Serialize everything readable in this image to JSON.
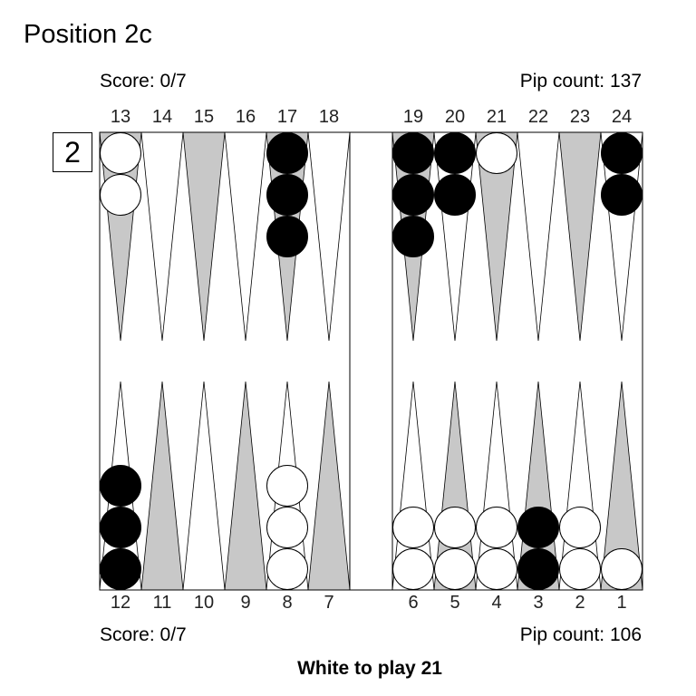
{
  "title": "Position 2c",
  "top": {
    "score": "Score: 0/7",
    "pip_count": "Pip count: 137"
  },
  "bottom": {
    "score": "Score: 0/7",
    "pip_count": "Pip count: 106"
  },
  "cube_value": "2",
  "caption": "White to play 21",
  "top_point_numbers": [
    "13",
    "14",
    "15",
    "16",
    "17",
    "18",
    "19",
    "20",
    "21",
    "22",
    "23",
    "24"
  ],
  "bottom_point_numbers": [
    "12",
    "11",
    "10",
    "9",
    "8",
    "7",
    "6",
    "5",
    "4",
    "3",
    "2",
    "1"
  ],
  "colors": {
    "dark_point": "#c8c8c8",
    "light_point": "#ffffff",
    "white_checker": "#ffffff",
    "black_checker": "#000000"
  },
  "checkers": [
    {
      "point": 13,
      "color": "white",
      "count": 2
    },
    {
      "point": 17,
      "color": "black",
      "count": 3
    },
    {
      "point": 19,
      "color": "black",
      "count": 3
    },
    {
      "point": 20,
      "color": "black",
      "count": 2
    },
    {
      "point": 21,
      "color": "white",
      "count": 1
    },
    {
      "point": 24,
      "color": "black",
      "count": 2
    },
    {
      "point": 12,
      "color": "black",
      "count": 3
    },
    {
      "point": 8,
      "color": "white",
      "count": 3
    },
    {
      "point": 6,
      "color": "white",
      "count": 2
    },
    {
      "point": 5,
      "color": "white",
      "count": 2
    },
    {
      "point": 4,
      "color": "white",
      "count": 2
    },
    {
      "point": 3,
      "color": "black",
      "count": 2
    },
    {
      "point": 2,
      "color": "white",
      "count": 2
    },
    {
      "point": 1,
      "color": "white",
      "count": 1
    }
  ]
}
